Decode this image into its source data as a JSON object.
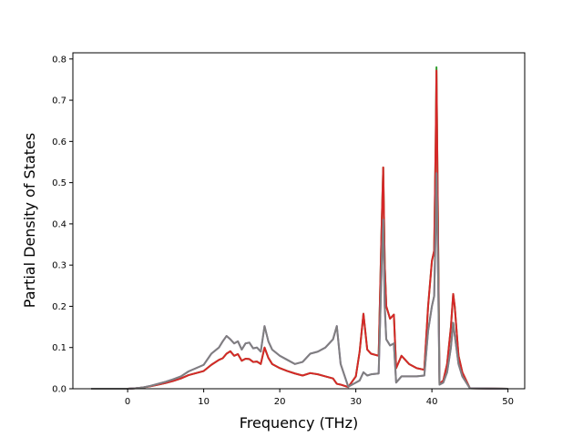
{
  "chart_data": {
    "type": "line",
    "xlabel": "Frequency (THz)",
    "ylabel": "Partial Density of States",
    "xlim": [
      -7.2,
      52.2
    ],
    "ylim": [
      0,
      0.815
    ],
    "xticks": [
      0,
      10,
      20,
      30,
      40,
      50
    ],
    "yticks": [
      0.0,
      0.1,
      0.2,
      0.3,
      0.4,
      0.5,
      0.6,
      0.7,
      0.8
    ],
    "ytick_labels": [
      "0.0",
      "0.1",
      "0.2",
      "0.3",
      "0.4",
      "0.5",
      "0.6",
      "0.7",
      "0.8"
    ],
    "grid": false,
    "series": [
      {
        "color": "#2ca02c",
        "points": [
          [
            -4.8,
            0
          ],
          [
            0,
            0
          ],
          [
            1,
            0.001
          ],
          [
            2,
            0.003
          ],
          [
            3,
            0.006
          ],
          [
            4,
            0.01
          ],
          [
            5,
            0.014
          ],
          [
            6,
            0.019
          ],
          [
            7,
            0.025
          ],
          [
            8,
            0.033
          ],
          [
            9,
            0.038
          ],
          [
            10,
            0.043
          ],
          [
            11,
            0.058
          ],
          [
            12,
            0.07
          ],
          [
            12.5,
            0.074
          ],
          [
            13,
            0.085
          ],
          [
            13.5,
            0.091
          ],
          [
            14,
            0.08
          ],
          [
            14.5,
            0.084
          ],
          [
            15,
            0.068
          ],
          [
            15.5,
            0.073
          ],
          [
            16,
            0.072
          ],
          [
            16.5,
            0.065
          ],
          [
            17,
            0.066
          ],
          [
            17.5,
            0.06
          ],
          [
            18,
            0.1
          ],
          [
            18.5,
            0.075
          ],
          [
            19,
            0.06
          ],
          [
            20,
            0.05
          ],
          [
            21,
            0.043
          ],
          [
            22,
            0.037
          ],
          [
            23,
            0.032
          ],
          [
            24,
            0.038
          ],
          [
            25,
            0.035
          ],
          [
            26,
            0.03
          ],
          [
            27,
            0.025
          ],
          [
            27.5,
            0.012
          ],
          [
            28,
            0.01
          ],
          [
            29,
            0.004
          ],
          [
            30,
            0.03
          ],
          [
            30.5,
            0.09
          ],
          [
            31,
            0.182
          ],
          [
            31.5,
            0.095
          ],
          [
            32,
            0.085
          ],
          [
            33,
            0.08
          ],
          [
            33.4,
            0.4
          ],
          [
            33.6,
            0.537
          ],
          [
            33.8,
            0.3
          ],
          [
            34,
            0.2
          ],
          [
            34.5,
            0.17
          ],
          [
            35,
            0.18
          ],
          [
            35.3,
            0.05
          ],
          [
            36,
            0.08
          ],
          [
            37,
            0.06
          ],
          [
            38,
            0.05
          ],
          [
            39,
            0.046
          ],
          [
            39.5,
            0.2
          ],
          [
            40,
            0.31
          ],
          [
            40.3,
            0.335
          ],
          [
            40.5,
            0.6
          ],
          [
            40.6,
            0.78
          ],
          [
            40.8,
            0.4
          ],
          [
            41,
            0.012
          ],
          [
            41.5,
            0.02
          ],
          [
            42,
            0.06
          ],
          [
            42.5,
            0.15
          ],
          [
            42.8,
            0.23
          ],
          [
            43,
            0.2
          ],
          [
            43.5,
            0.08
          ],
          [
            44,
            0.04
          ],
          [
            45,
            0.001
          ],
          [
            50,
            0
          ]
        ]
      },
      {
        "color": "#d62728",
        "points": [
          [
            -4.8,
            0
          ],
          [
            0,
            0
          ],
          [
            1,
            0.001
          ],
          [
            2,
            0.003
          ],
          [
            3,
            0.006
          ],
          [
            4,
            0.01
          ],
          [
            5,
            0.014
          ],
          [
            6,
            0.019
          ],
          [
            7,
            0.025
          ],
          [
            8,
            0.033
          ],
          [
            9,
            0.038
          ],
          [
            10,
            0.043
          ],
          [
            11,
            0.058
          ],
          [
            12,
            0.07
          ],
          [
            12.5,
            0.074
          ],
          [
            13,
            0.085
          ],
          [
            13.5,
            0.091
          ],
          [
            14,
            0.08
          ],
          [
            14.5,
            0.084
          ],
          [
            15,
            0.068
          ],
          [
            15.5,
            0.073
          ],
          [
            16,
            0.072
          ],
          [
            16.5,
            0.065
          ],
          [
            17,
            0.066
          ],
          [
            17.5,
            0.06
          ],
          [
            18,
            0.1
          ],
          [
            18.5,
            0.075
          ],
          [
            19,
            0.06
          ],
          [
            20,
            0.05
          ],
          [
            21,
            0.043
          ],
          [
            22,
            0.037
          ],
          [
            23,
            0.032
          ],
          [
            24,
            0.038
          ],
          [
            25,
            0.035
          ],
          [
            26,
            0.03
          ],
          [
            27,
            0.025
          ],
          [
            27.5,
            0.012
          ],
          [
            28,
            0.01
          ],
          [
            29,
            0.004
          ],
          [
            30,
            0.03
          ],
          [
            30.5,
            0.09
          ],
          [
            31,
            0.182
          ],
          [
            31.5,
            0.095
          ],
          [
            32,
            0.085
          ],
          [
            33,
            0.08
          ],
          [
            33.4,
            0.4
          ],
          [
            33.6,
            0.537
          ],
          [
            33.8,
            0.3
          ],
          [
            34,
            0.2
          ],
          [
            34.5,
            0.17
          ],
          [
            35,
            0.18
          ],
          [
            35.3,
            0.05
          ],
          [
            36,
            0.08
          ],
          [
            37,
            0.06
          ],
          [
            38,
            0.05
          ],
          [
            39,
            0.046
          ],
          [
            39.5,
            0.2
          ],
          [
            40,
            0.31
          ],
          [
            40.3,
            0.335
          ],
          [
            40.5,
            0.6
          ],
          [
            40.6,
            0.772
          ],
          [
            40.8,
            0.4
          ],
          [
            41,
            0.012
          ],
          [
            41.5,
            0.02
          ],
          [
            42,
            0.06
          ],
          [
            42.5,
            0.15
          ],
          [
            42.8,
            0.23
          ],
          [
            43,
            0.2
          ],
          [
            43.5,
            0.08
          ],
          [
            44,
            0.04
          ],
          [
            45,
            0.001
          ],
          [
            50,
            0
          ]
        ]
      },
      {
        "color": "#9467bd",
        "points": [
          [
            -4.8,
            0
          ],
          [
            0,
            0
          ],
          [
            1,
            0.001
          ],
          [
            2,
            0.003
          ],
          [
            3,
            0.007
          ],
          [
            4,
            0.012
          ],
          [
            5,
            0.017
          ],
          [
            6,
            0.023
          ],
          [
            7,
            0.03
          ],
          [
            8,
            0.042
          ],
          [
            9,
            0.05
          ],
          [
            10,
            0.058
          ],
          [
            11,
            0.085
          ],
          [
            12,
            0.1
          ],
          [
            12.5,
            0.115
          ],
          [
            13,
            0.128
          ],
          [
            13.5,
            0.12
          ],
          [
            14,
            0.11
          ],
          [
            14.5,
            0.115
          ],
          [
            15,
            0.095
          ],
          [
            15.5,
            0.11
          ],
          [
            16,
            0.112
          ],
          [
            16.5,
            0.098
          ],
          [
            17,
            0.1
          ],
          [
            17.5,
            0.09
          ],
          [
            18,
            0.152
          ],
          [
            18.5,
            0.115
          ],
          [
            19,
            0.095
          ],
          [
            20,
            0.08
          ],
          [
            21,
            0.07
          ],
          [
            22,
            0.06
          ],
          [
            23,
            0.065
          ],
          [
            24,
            0.085
          ],
          [
            25,
            0.09
          ],
          [
            26,
            0.1
          ],
          [
            27,
            0.12
          ],
          [
            27.5,
            0.152
          ],
          [
            28,
            0.06
          ],
          [
            29,
            0.005
          ],
          [
            30,
            0.015
          ],
          [
            30.5,
            0.02
          ],
          [
            31,
            0.04
          ],
          [
            31.5,
            0.032
          ],
          [
            32,
            0.035
          ],
          [
            33,
            0.037
          ],
          [
            33.4,
            0.3
          ],
          [
            33.6,
            0.41
          ],
          [
            33.8,
            0.2
          ],
          [
            34,
            0.12
          ],
          [
            34.5,
            0.105
          ],
          [
            35,
            0.11
          ],
          [
            35.3,
            0.015
          ],
          [
            36,
            0.03
          ],
          [
            37,
            0.03
          ],
          [
            38,
            0.03
          ],
          [
            39,
            0.032
          ],
          [
            39.5,
            0.14
          ],
          [
            40,
            0.2
          ],
          [
            40.3,
            0.225
          ],
          [
            40.5,
            0.4
          ],
          [
            40.6,
            0.523
          ],
          [
            40.8,
            0.3
          ],
          [
            41,
            0.01
          ],
          [
            41.5,
            0.015
          ],
          [
            42,
            0.04
          ],
          [
            42.5,
            0.1
          ],
          [
            42.8,
            0.16
          ],
          [
            43,
            0.13
          ],
          [
            43.5,
            0.06
          ],
          [
            44,
            0.03
          ],
          [
            45,
            0.001
          ],
          [
            50,
            0
          ]
        ]
      },
      {
        "color": "#7f7f7f",
        "points": [
          [
            -4.8,
            0
          ],
          [
            0,
            0
          ],
          [
            1,
            0.001
          ],
          [
            2,
            0.003
          ],
          [
            3,
            0.007
          ],
          [
            4,
            0.012
          ],
          [
            5,
            0.017
          ],
          [
            6,
            0.023
          ],
          [
            7,
            0.03
          ],
          [
            8,
            0.042
          ],
          [
            9,
            0.05
          ],
          [
            10,
            0.058
          ],
          [
            11,
            0.085
          ],
          [
            12,
            0.1
          ],
          [
            12.5,
            0.115
          ],
          [
            13,
            0.128
          ],
          [
            13.5,
            0.12
          ],
          [
            14,
            0.11
          ],
          [
            14.5,
            0.115
          ],
          [
            15,
            0.095
          ],
          [
            15.5,
            0.11
          ],
          [
            16,
            0.112
          ],
          [
            16.5,
            0.098
          ],
          [
            17,
            0.1
          ],
          [
            17.5,
            0.09
          ],
          [
            18,
            0.152
          ],
          [
            18.5,
            0.115
          ],
          [
            19,
            0.095
          ],
          [
            20,
            0.08
          ],
          [
            21,
            0.07
          ],
          [
            22,
            0.06
          ],
          [
            23,
            0.065
          ],
          [
            24,
            0.085
          ],
          [
            25,
            0.09
          ],
          [
            26,
            0.1
          ],
          [
            27,
            0.12
          ],
          [
            27.5,
            0.152
          ],
          [
            28,
            0.06
          ],
          [
            29,
            0.005
          ],
          [
            30,
            0.015
          ],
          [
            30.5,
            0.02
          ],
          [
            31,
            0.04
          ],
          [
            31.5,
            0.032
          ],
          [
            32,
            0.035
          ],
          [
            33,
            0.037
          ],
          [
            33.4,
            0.3
          ],
          [
            33.6,
            0.41
          ],
          [
            33.8,
            0.2
          ],
          [
            34,
            0.12
          ],
          [
            34.5,
            0.105
          ],
          [
            35,
            0.11
          ],
          [
            35.3,
            0.015
          ],
          [
            36,
            0.03
          ],
          [
            37,
            0.03
          ],
          [
            38,
            0.03
          ],
          [
            39,
            0.032
          ],
          [
            39.5,
            0.14
          ],
          [
            40,
            0.2
          ],
          [
            40.3,
            0.225
          ],
          [
            40.5,
            0.4
          ],
          [
            40.6,
            0.523
          ],
          [
            40.8,
            0.3
          ],
          [
            41,
            0.01
          ],
          [
            41.5,
            0.015
          ],
          [
            42,
            0.04
          ],
          [
            42.5,
            0.1
          ],
          [
            42.8,
            0.16
          ],
          [
            43,
            0.13
          ],
          [
            43.5,
            0.06
          ],
          [
            44,
            0.03
          ],
          [
            45,
            0.001
          ],
          [
            50,
            0
          ]
        ]
      }
    ]
  }
}
